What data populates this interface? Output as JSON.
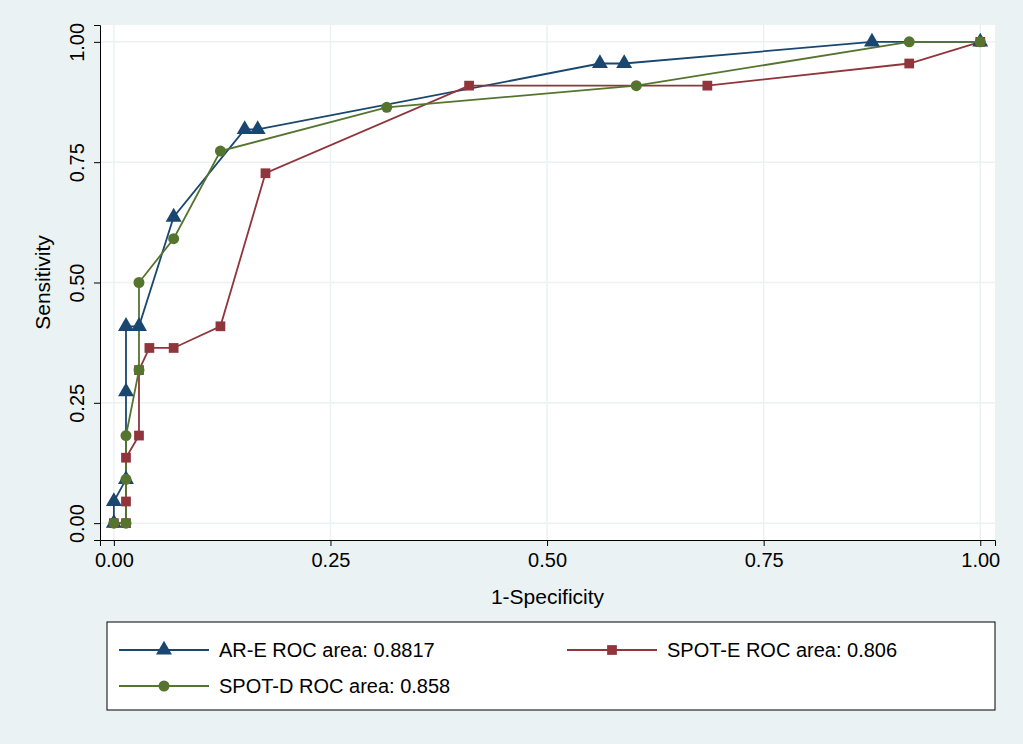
{
  "chart_data": {
    "type": "line",
    "xlabel": "1-Specificity",
    "ylabel": "Sensitivity",
    "xlim": [
      -0.016,
      1.017
    ],
    "ylim": [
      -0.035,
      1.035
    ],
    "xticks": [
      {
        "value": 0,
        "label": "0.00"
      },
      {
        "value": 0.25,
        "label": "0.25"
      },
      {
        "value": 0.5,
        "label": "0.50"
      },
      {
        "value": 0.75,
        "label": "0.75"
      },
      {
        "value": 1,
        "label": "1.00"
      }
    ],
    "yticks": [
      {
        "value": 0,
        "label": "0.00"
      },
      {
        "value": 0.25,
        "label": "0.25"
      },
      {
        "value": 0.5,
        "label": "0.50"
      },
      {
        "value": 0.75,
        "label": "0.75"
      },
      {
        "value": 1,
        "label": "1.00"
      }
    ],
    "grid": true,
    "legend": "bottom",
    "series": [
      {
        "name": "AR-E ROC area: 0.8817",
        "color": "#1a476f",
        "marker": "triangle",
        "x": [
          0,
          0,
          0.014,
          0.014,
          0.014,
          0.029,
          0.069,
          0.151,
          0.166,
          0.561,
          0.589,
          0.875,
          1
        ],
        "values": [
          0,
          0.045,
          0.091,
          0.273,
          0.409,
          0.409,
          0.636,
          0.818,
          0.818,
          0.955,
          0.955,
          1,
          1
        ]
      },
      {
        "name": "SPOT-E ROC area: 0.806",
        "color": "#90353b",
        "marker": "square",
        "x": [
          0,
          0.014,
          0.014,
          0.014,
          0.029,
          0.029,
          0.041,
          0.069,
          0.123,
          0.175,
          0.41,
          0.685,
          0.918,
          1
        ],
        "values": [
          0,
          0,
          0.045,
          0.136,
          0.182,
          0.318,
          0.364,
          0.364,
          0.409,
          0.727,
          0.909,
          0.909,
          0.955,
          1
        ]
      },
      {
        "name": "SPOT-D ROC area: 0.858",
        "color": "#55752f",
        "marker": "circle",
        "x": [
          0,
          0.014,
          0.014,
          0.014,
          0.029,
          0.029,
          0.069,
          0.123,
          0.315,
          0.603,
          0.918,
          1
        ],
        "values": [
          0,
          0,
          0.091,
          0.182,
          0.318,
          0.5,
          0.591,
          0.773,
          0.864,
          0.909,
          1,
          1
        ]
      }
    ]
  }
}
